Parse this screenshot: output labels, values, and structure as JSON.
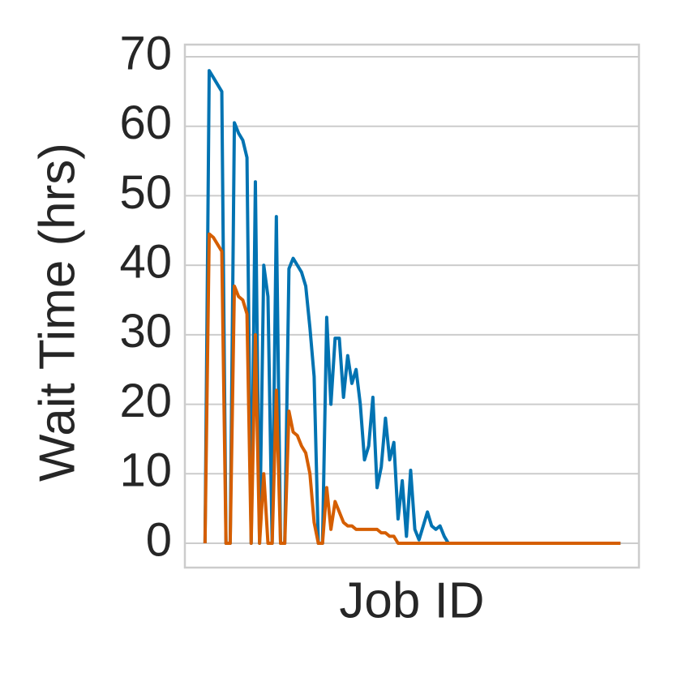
{
  "chart_data": {
    "type": "line",
    "ylabel": "Wait Time (hrs)",
    "xlabel": "Job ID",
    "x": [
      0,
      1,
      2,
      3,
      4,
      5,
      6,
      7,
      8,
      9,
      10,
      11,
      12,
      13,
      14,
      15,
      16,
      17,
      18,
      19,
      20,
      21,
      22,
      23,
      24,
      25,
      26,
      27,
      28,
      29,
      30,
      31,
      32,
      33,
      34,
      35,
      36,
      37,
      38,
      39,
      40,
      41,
      42,
      43,
      44,
      45,
      46,
      47,
      48,
      49,
      50,
      51,
      52,
      53,
      54,
      55,
      56,
      57,
      58,
      59,
      60,
      61,
      62,
      63,
      64,
      65,
      66,
      67,
      68,
      69,
      70,
      71,
      72,
      73,
      74,
      75,
      76,
      77,
      78,
      79,
      80,
      81,
      82,
      83,
      84,
      85,
      86,
      87,
      88,
      89,
      90,
      91,
      92,
      93,
      94,
      95,
      96,
      97,
      98,
      99
    ],
    "series": [
      {
        "color": "#0173b2",
        "values": [
          0,
          68,
          67,
          66,
          65,
          0,
          0,
          60.5,
          59,
          58,
          55.5,
          0,
          52,
          0,
          40,
          35.5,
          0,
          47,
          0,
          0,
          39.5,
          41,
          40,
          39,
          37,
          31,
          24,
          0,
          0,
          32.5,
          20,
          29.5,
          29.5,
          21,
          27,
          23,
          25,
          20,
          12,
          14,
          21,
          8,
          11,
          18,
          12,
          14.5,
          3.5,
          9,
          1,
          10.5,
          2,
          0.5,
          2.5,
          4.5,
          2.5,
          2,
          2.5,
          1,
          0,
          0,
          0,
          0,
          0,
          0,
          0,
          0,
          0,
          0,
          0,
          0,
          0,
          0,
          0,
          0,
          0,
          0,
          0,
          0,
          0,
          0,
          0,
          0,
          0,
          0,
          0,
          0,
          0,
          0,
          0,
          0,
          0,
          0,
          0,
          0,
          0,
          0,
          0,
          0,
          0,
          0
        ]
      },
      {
        "color": "#d55e00",
        "values": [
          0,
          44.5,
          44,
          43,
          42,
          0,
          0,
          37,
          35.5,
          35,
          33,
          0,
          30,
          0,
          10,
          0,
          0,
          22,
          0,
          0,
          19,
          16,
          15.5,
          14,
          13,
          10,
          3,
          0,
          0,
          8,
          2,
          6,
          4.5,
          3,
          2.5,
          2.5,
          2,
          2,
          2,
          2,
          2,
          2,
          1.5,
          1.5,
          1,
          1,
          0,
          0,
          0,
          0,
          0,
          0,
          0,
          0,
          0,
          0,
          0,
          0,
          0,
          0,
          0,
          0,
          0,
          0,
          0,
          0,
          0,
          0,
          0,
          0,
          0,
          0,
          0,
          0,
          0,
          0,
          0,
          0,
          0,
          0,
          0,
          0,
          0,
          0,
          0,
          0,
          0,
          0,
          0,
          0,
          0,
          0,
          0,
          0,
          0,
          0,
          0,
          0,
          0,
          0
        ]
      }
    ],
    "xlim": [
      -4.8,
      103.4
    ],
    "ylim": [
      -3.5,
      71.75
    ],
    "yticks": [
      0,
      10,
      20,
      30,
      40,
      50,
      60,
      70
    ],
    "grid": true
  }
}
